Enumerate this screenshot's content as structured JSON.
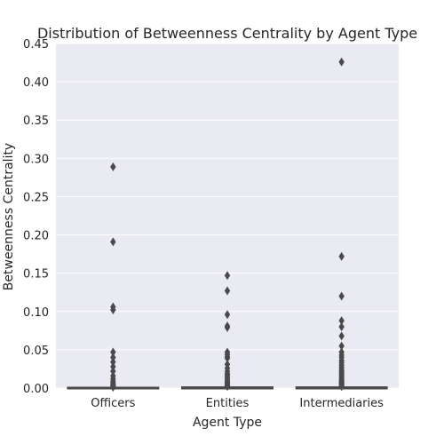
{
  "chart_data": {
    "type": "box",
    "title": "Distribution of Betweenness Centrality by Agent Type",
    "xlabel": "Agent Type",
    "ylabel": "Betweenness Centrality",
    "ylim": [
      0,
      0.45
    ],
    "yticks": [
      "0.00",
      "0.05",
      "0.10",
      "0.15",
      "0.20",
      "0.25",
      "0.30",
      "0.35",
      "0.40",
      "0.45"
    ],
    "categories": [
      "Officers",
      "Entities",
      "Intermediaries"
    ],
    "grid": true,
    "colors": {
      "plot_background": "#eaeaf2",
      "grid": "#ffffff",
      "marks": "#4a4a4a"
    },
    "series": [
      {
        "category": "Officers",
        "q1": 0,
        "median": 0,
        "q3": 0,
        "whisker_low": 0,
        "whisker_high": 0,
        "outliers": [
          0.289,
          0.191,
          0.106,
          0.102,
          0.047,
          0.04,
          0.034,
          0.028,
          0.022,
          0.016,
          0.012,
          0.009,
          0.007,
          0.005,
          0.004,
          0.003,
          0.002,
          0.001
        ]
      },
      {
        "category": "Entities",
        "q1": 0,
        "median": 0,
        "q3": 0.0005,
        "whisker_low": 0,
        "whisker_high": 0.001,
        "outliers": [
          0.147,
          0.127,
          0.096,
          0.081,
          0.079,
          0.047,
          0.044,
          0.041,
          0.039,
          0.031,
          0.026,
          0.022,
          0.019,
          0.017,
          0.015,
          0.013,
          0.011,
          0.009,
          0.008,
          0.007,
          0.006,
          0.005,
          0.004,
          0.003,
          0.002
        ]
      },
      {
        "category": "Intermediaries",
        "q1": 0,
        "median": 0,
        "q3": 0.0005,
        "whisker_low": 0,
        "whisker_high": 0.001,
        "outliers": [
          0.426,
          0.172,
          0.12,
          0.088,
          0.08,
          0.068,
          0.055,
          0.047,
          0.043,
          0.04,
          0.036,
          0.033,
          0.03,
          0.027,
          0.024,
          0.022,
          0.02,
          0.018,
          0.016,
          0.014,
          0.012,
          0.01,
          0.009,
          0.008,
          0.007,
          0.006,
          0.005,
          0.004,
          0.003,
          0.002
        ]
      }
    ]
  }
}
